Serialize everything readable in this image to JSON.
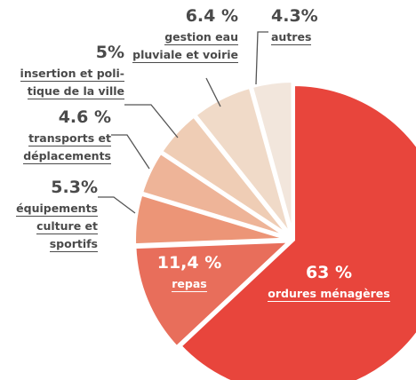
{
  "chart_data": {
    "type": "pie",
    "categories": [
      "ordures ménagères",
      "repas",
      "équipements\nculture et\nsportifs",
      "transports et\ndéplacements",
      "insertion et poli-\ntique de la ville",
      "gestion eau\npluviale et voirie",
      "autres"
    ],
    "values": [
      63,
      11.4,
      5.3,
      4.6,
      5,
      6.4,
      4.3
    ],
    "value_labels": [
      "63 %",
      "11,4 %",
      "5.3%",
      "4.6 %",
      "5%",
      "6.4 %",
      "4.3%"
    ],
    "colors": [
      "#e8453c",
      "#e86e5b",
      "#ec9577",
      "#eeb498",
      "#efcdb5",
      "#f0dac8",
      "#f2e6dc"
    ]
  }
}
